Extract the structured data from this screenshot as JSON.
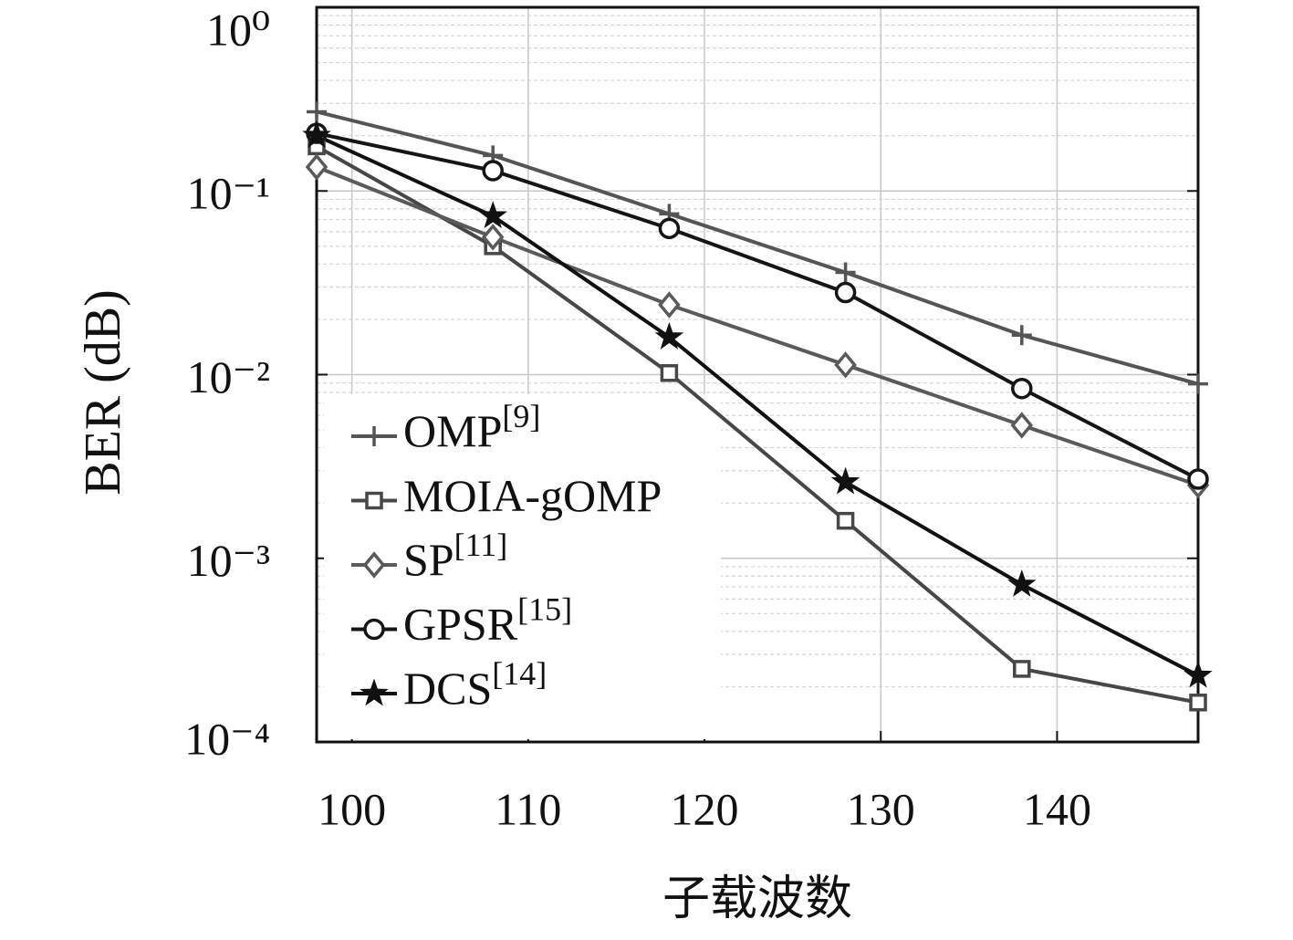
{
  "chart_data": {
    "type": "line",
    "xlabel": "子载波数",
    "ylabel": "BER (dB)",
    "x": [
      98,
      108,
      118,
      128,
      138,
      148
    ],
    "xlim": [
      98,
      148
    ],
    "xticks": [
      100,
      110,
      120,
      130,
      140
    ],
    "ylim": [
      0.0001,
      1
    ],
    "yscale": "log",
    "yticks": [
      {
        "value": 1,
        "label": "10⁰"
      },
      {
        "value": 0.1,
        "label": "10⁻¹"
      },
      {
        "value": 0.01,
        "label": "10⁻²"
      },
      {
        "value": 0.001,
        "label": "10⁻³"
      },
      {
        "value": 0.0001,
        "label": "10⁻⁴"
      }
    ],
    "grid": true,
    "legend": "lower left",
    "series": [
      {
        "name": "OMP[9]",
        "color": "#555555",
        "marker": "plus",
        "values": [
          0.27,
          0.156,
          0.075,
          0.036,
          0.0164,
          0.0089
        ]
      },
      {
        "name": "MOIA-gOMP",
        "color": "#474747",
        "marker": "square",
        "values": [
          0.175,
          0.05,
          0.0102,
          0.0016,
          0.00025,
          0.000164
        ]
      },
      {
        "name": "SP[11]",
        "color": "#5a5a5a",
        "marker": "diamond",
        "values": [
          0.135,
          0.056,
          0.024,
          0.0113,
          0.0053,
          0.0025
        ]
      },
      {
        "name": "GPSR[15]",
        "color": "#151515",
        "marker": "circle",
        "values": [
          0.206,
          0.129,
          0.0625,
          0.028,
          0.0084,
          0.0027
        ]
      },
      {
        "name": "DCS[14]",
        "color": "#111111",
        "marker": "star",
        "values": [
          0.2,
          0.073,
          0.016,
          0.0026,
          0.00072,
          0.00023
        ]
      }
    ]
  }
}
